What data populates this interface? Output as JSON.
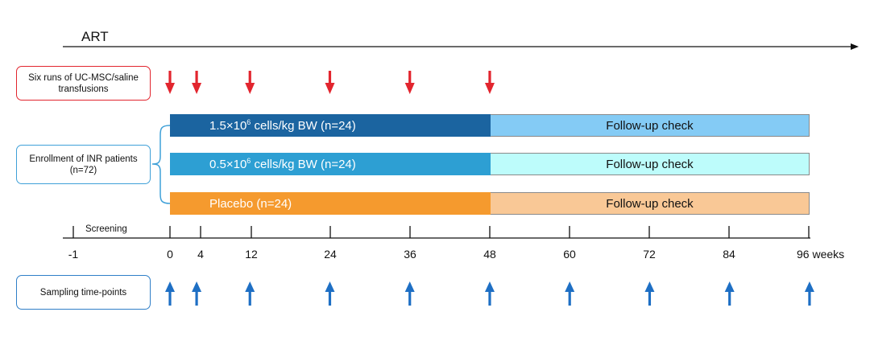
{
  "art_label": "ART",
  "transfusion_box": "Six runs of UC-MSC/saline transfusions",
  "enrollment_box": {
    "line1": "Enrollment of INR patients",
    "line2": "(n=72)"
  },
  "sampling_box": "Sampling time-points",
  "screening_label": "Screening",
  "arms": [
    {
      "prefix": "1.5×10",
      "sup": "6",
      "suffix": " cells/kg BW (n=24)",
      "follow": "Follow-up check"
    },
    {
      "prefix": "0.5×10",
      "sup": "6",
      "suffix": " cells/kg BW (n=24)",
      "follow": "Follow-up check"
    },
    {
      "prefix": "Placebo (n=24)",
      "sup": "",
      "suffix": "",
      "follow": "Follow-up check"
    }
  ],
  "timeline_ticks": [
    "-1",
    "0",
    "4",
    "12",
    "24",
    "36",
    "48",
    "60",
    "72",
    "84",
    "96 weeks"
  ],
  "transfusion_weeks": [
    0,
    4,
    12,
    24,
    36,
    48
  ],
  "sampling_weeks": [
    0,
    4,
    12,
    24,
    36,
    48,
    60,
    72,
    84,
    96
  ],
  "colors": {
    "red_arrow": "#e2252e",
    "blue_arrow": "#1e6fc4",
    "arm1_treatment": "#1b64a0",
    "arm2_treatment": "#2d9fd3",
    "arm3_treatment": "#f59a2e",
    "arm1_follow": "#84cbf5",
    "arm2_follow": "#bdfcfb",
    "arm3_follow": "#f9c896"
  }
}
